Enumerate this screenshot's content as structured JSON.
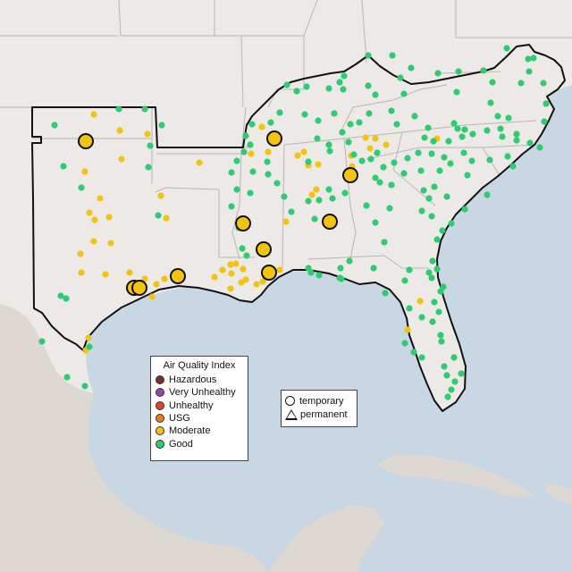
{
  "map": {
    "colors": {
      "ocean": "#c9d6e4",
      "land_us": "#ece9e6",
      "land_other": "#ddd8d2",
      "state_line": "#b9b6b3",
      "region_border": "#111111",
      "good": "#2dcc70",
      "moderate": "#f2c40f"
    },
    "monitors": {
      "temporary_small": [
        [
          61,
          140
        ],
        [
          105,
          128
        ],
        [
          133,
          122
        ],
        [
          162,
          122
        ],
        [
          181,
          140
        ],
        [
          134,
          146
        ],
        [
          165,
          150
        ],
        [
          168,
          163
        ],
        [
          71,
          186
        ],
        [
          95,
          192
        ],
        [
          136,
          178
        ],
        [
          223,
          182
        ],
        [
          91,
          210
        ],
        [
          112,
          222
        ],
        [
          180,
          219
        ],
        [
          100,
          238
        ],
        [
          106,
          246
        ],
        [
          122,
          243
        ],
        [
          177,
          241
        ],
        [
          186,
          244
        ],
        [
          105,
          270
        ],
        [
          124,
          272
        ],
        [
          90,
          284
        ],
        [
          91,
          305
        ],
        [
          68,
          331
        ],
        [
          74,
          334
        ],
        [
          118,
          307
        ],
        [
          145,
          305
        ],
        [
          162,
          312
        ],
        [
          175,
          318
        ],
        [
          184,
          312
        ],
        [
          170,
          332
        ],
        [
          249,
          302
        ],
        [
          259,
          306
        ],
        [
          272,
          301
        ],
        [
          240,
          310
        ],
        [
          258,
          323
        ],
        [
          270,
          316
        ],
        [
          275,
          313
        ],
        [
          287,
          318
        ],
        [
          294,
          315
        ],
        [
          313,
          302
        ],
        [
          320,
          248
        ],
        [
          273,
          170
        ],
        [
          281,
          172
        ],
        [
          293,
          142
        ],
        [
          303,
          137
        ],
        [
          340,
          170
        ],
        [
          345,
          185
        ],
        [
          356,
          184
        ],
        [
          354,
          212
        ],
        [
          349,
          218
        ],
        [
          357,
          224
        ],
        [
          345,
          225
        ],
        [
          352,
          245
        ],
        [
          393,
          174
        ],
        [
          394,
          186
        ],
        [
          409,
          154
        ],
        [
          414,
          166
        ],
        [
          420,
          155
        ],
        [
          432,
          162
        ],
        [
          489,
          155
        ],
        [
          502,
          158
        ],
        [
          99,
          378
        ],
        [
          96,
          392
        ],
        [
          456,
          369
        ],
        [
          470,
          337
        ],
        [
          47,
          382
        ],
        [
          75,
          422
        ],
        [
          95,
          432
        ],
        [
          100,
          388
        ],
        [
          412,
          62
        ],
        [
          439,
          62
        ],
        [
          460,
          76
        ],
        [
          490,
          82
        ],
        [
          513,
          80
        ],
        [
          541,
          79
        ],
        [
          567,
          54
        ],
        [
          591,
          66
        ],
        [
          597,
          65
        ],
        [
          592,
          80
        ],
        [
          412,
          96
        ],
        [
          380,
          92
        ],
        [
          384,
          100
        ],
        [
          321,
          95
        ],
        [
          332,
          102
        ],
        [
          343,
          97
        ],
        [
          368,
          99
        ],
        [
          385,
          85
        ],
        [
          420,
          106
        ],
        [
          452,
          105
        ],
        [
          448,
          87
        ],
        [
          551,
          92
        ],
        [
          549,
          115
        ],
        [
          583,
          93
        ],
        [
          608,
          93
        ],
        [
          611,
          116
        ],
        [
          557,
          130
        ],
        [
          511,
          103
        ],
        [
          569,
          132
        ],
        [
          578,
          150
        ],
        [
          609,
          136
        ],
        [
          313,
          126
        ],
        [
          341,
          128
        ],
        [
          374,
          127
        ],
        [
          356,
          135
        ],
        [
          392,
          139
        ],
        [
          402,
          137
        ],
        [
          413,
          127
        ],
        [
          438,
          124
        ],
        [
          444,
          139
        ],
        [
          464,
          130
        ],
        [
          475,
          154
        ],
        [
          479,
          143
        ],
        [
          485,
          158
        ],
        [
          508,
          138
        ],
        [
          512,
          144
        ],
        [
          517,
          153
        ],
        [
          520,
          145
        ],
        [
          529,
          150
        ],
        [
          545,
          146
        ],
        [
          560,
          144
        ],
        [
          562,
          153
        ],
        [
          578,
          157
        ],
        [
          593,
          160
        ],
        [
          604,
          165
        ],
        [
          282,
          139
        ],
        [
          275,
          152
        ],
        [
          280,
          162
        ],
        [
          265,
          180
        ],
        [
          259,
          193
        ],
        [
          283,
          192
        ],
        [
          265,
          212
        ],
        [
          300,
          195
        ],
        [
          310,
          205
        ],
        [
          318,
          220
        ],
        [
          326,
          237
        ],
        [
          345,
          181
        ],
        [
          333,
          174
        ],
        [
          355,
          155
        ],
        [
          368,
          162
        ],
        [
          369,
          169
        ],
        [
          383,
          148
        ],
        [
          390,
          159
        ],
        [
          396,
          173
        ],
        [
          405,
          180
        ],
        [
          415,
          178
        ],
        [
          422,
          171
        ],
        [
          429,
          187
        ],
        [
          441,
          182
        ],
        [
          456,
          177
        ],
        [
          468,
          171
        ],
        [
          483,
          172
        ],
        [
          497,
          176
        ],
        [
          504,
          183
        ],
        [
          519,
          171
        ],
        [
          528,
          180
        ],
        [
          548,
          179
        ],
        [
          568,
          175
        ],
        [
          574,
          186
        ],
        [
          420,
          199
        ],
        [
          425,
          204
        ],
        [
          438,
          207
        ],
        [
          452,
          194
        ],
        [
          471,
          191
        ],
        [
          474,
          213
        ],
        [
          486,
          209
        ],
        [
          492,
          191
        ],
        [
          523,
          196
        ],
        [
          368,
          212
        ],
        [
          372,
          222
        ],
        [
          386,
          216
        ],
        [
          410,
          230
        ],
        [
          420,
          249
        ],
        [
          430,
          271
        ],
        [
          436,
          233
        ],
        [
          472,
          236
        ],
        [
          483,
          242
        ],
        [
          505,
          250
        ],
        [
          520,
          234
        ],
        [
          545,
          218
        ],
        [
          500,
          220
        ],
        [
          480,
          222
        ],
        [
          489,
          268
        ],
        [
          495,
          258
        ],
        [
          480,
          305
        ],
        [
          483,
          311
        ],
        [
          489,
          301
        ],
        [
          484,
          292
        ],
        [
          458,
          302
        ],
        [
          453,
          314
        ],
        [
          458,
          345
        ],
        [
          472,
          355
        ],
        [
          486,
          338
        ],
        [
          491,
          349
        ],
        [
          493,
          326
        ],
        [
          496,
          321
        ],
        [
          484,
          360
        ],
        [
          493,
          375
        ],
        [
          508,
          400
        ],
        [
          516,
          418
        ],
        [
          509,
          427
        ],
        [
          505,
          436
        ],
        [
          501,
          444
        ],
        [
          472,
          400
        ],
        [
          463,
          394
        ],
        [
          453,
          384
        ],
        [
          494,
          382
        ],
        [
          500,
          420
        ],
        [
          497,
          410
        ],
        [
          345,
          300
        ],
        [
          348,
          305
        ],
        [
          357,
          308
        ],
        [
          381,
          300
        ],
        [
          380,
          311
        ],
        [
          391,
          292
        ],
        [
          418,
          300
        ],
        [
          382,
          312
        ],
        [
          431,
          328
        ],
        [
          264,
          295
        ],
        [
          258,
          296
        ],
        [
          271,
          278
        ],
        [
          276,
          286
        ],
        [
          267,
          255
        ],
        [
          259,
          231
        ],
        [
          280,
          216
        ],
        [
          166,
          187
        ],
        [
          299,
          181
        ],
        [
          300,
          170
        ]
      ],
      "temporary_large": [
        [
          96,
          158,
          "mod"
        ],
        [
          307,
          155,
          "mod"
        ],
        [
          392,
          196,
          "mod"
        ],
        [
          272,
          250,
          "mod"
        ],
        [
          369,
          248,
          "mod"
        ],
        [
          295,
          279,
          "mod"
        ],
        [
          301,
          305,
          "mod"
        ],
        [
          199,
          309,
          "mod"
        ],
        [
          150,
          322,
          "mod"
        ],
        [
          156,
          322,
          "mod"
        ]
      ]
    }
  },
  "legend": {
    "title": "Air Quality Index",
    "categories": [
      {
        "label": "Hazardous",
        "color": "#7e2c2c"
      },
      {
        "label": "Very Unhealthy",
        "color": "#8e4aa8"
      },
      {
        "label": "Unhealthy",
        "color": "#e2412f"
      },
      {
        "label": "USG",
        "color": "#e67e1f"
      },
      {
        "label": "Moderate",
        "color": "#f2c40f"
      },
      {
        "label": "Good",
        "color": "#2dcc70"
      }
    ]
  },
  "type_legend": {
    "temporary": "temporary",
    "permanent": "permanent"
  }
}
